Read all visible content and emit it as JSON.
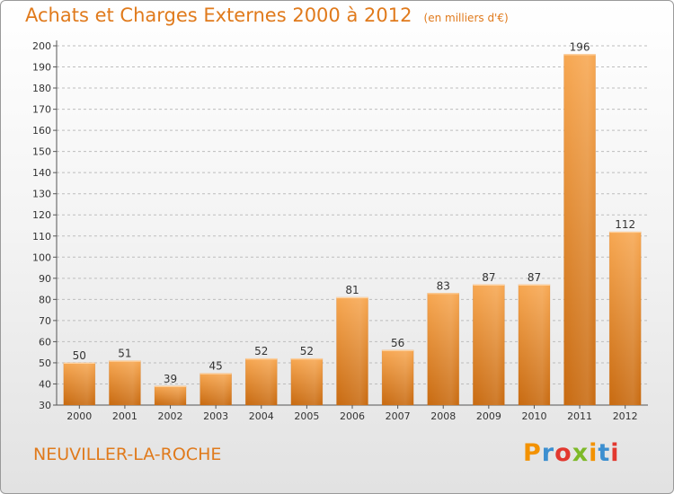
{
  "header": {
    "title": "Achats et Charges Externes 2000 à 2012",
    "unit": "(en milliers d'€)"
  },
  "footer": {
    "commune": "NEUVILLER-LA-ROCHE",
    "brand": {
      "letters": [
        "P",
        "r",
        "o",
        "x",
        "i",
        "t",
        "i"
      ],
      "colors": [
        "#f39200",
        "#3c8fd0",
        "#e2382f",
        "#7db928",
        "#f39200",
        "#3c8fd0",
        "#e2382f"
      ]
    }
  },
  "colors": {
    "accent": "#e07a1c",
    "bar_light": "#f7a751",
    "bar_dark": "#c86a10",
    "grid": "#bdbdbd"
  },
  "chart_data": {
    "type": "bar",
    "categories": [
      "2000",
      "2001",
      "2002",
      "2003",
      "2004",
      "2005",
      "2006",
      "2007",
      "2008",
      "2009",
      "2010",
      "2011",
      "2012"
    ],
    "values": [
      50,
      51,
      39,
      45,
      52,
      52,
      81,
      56,
      83,
      87,
      87,
      196,
      112
    ],
    "ylim": [
      30,
      200
    ],
    "yticks": [
      30,
      40,
      50,
      60,
      70,
      80,
      90,
      100,
      110,
      120,
      130,
      140,
      150,
      160,
      170,
      180,
      190,
      200
    ],
    "grid": true,
    "data_labels": true
  }
}
